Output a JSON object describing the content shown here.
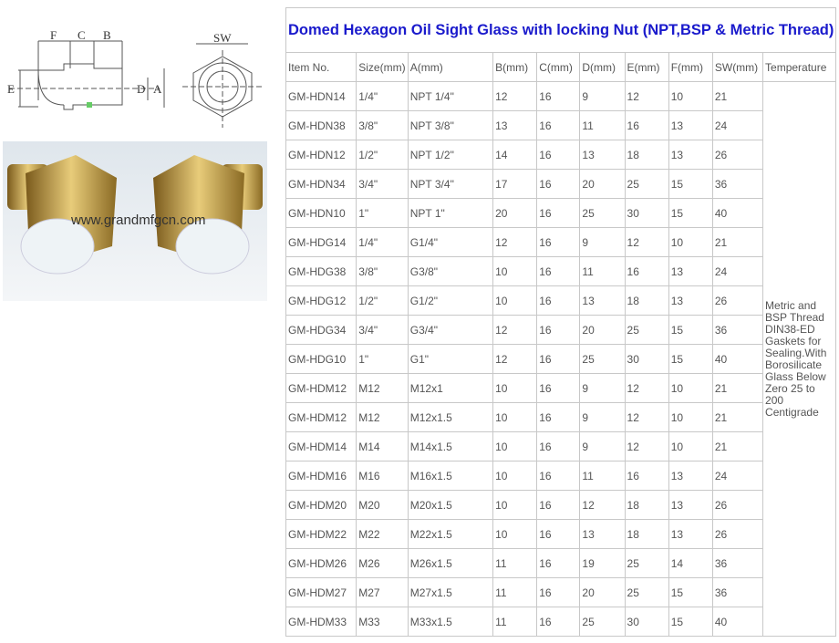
{
  "diagram": {
    "labels": [
      "F",
      "C",
      "B",
      "SW",
      "E",
      "D",
      "A"
    ]
  },
  "photo": {
    "watermark": "www.grandmfgcn.com"
  },
  "table": {
    "title": "Domed Hexagon Oil Sight Glass with locking Nut (NPT,BSP & Metric Thread)",
    "headers": [
      "Item No.",
      "Size(mm)",
      "A(mm)",
      "B(mm)",
      "C(mm)",
      "D(mm)",
      "E(mm)",
      "F(mm)",
      "SW(mm)",
      "Temperature"
    ],
    "temperature_note": "Metric and BSP Thread DIN38-ED Gaskets for Sealing.With Borosilicate Glass Below Zero 25 to 200 Centigrade",
    "rows": [
      [
        "GM-HDN14",
        "1/4\"",
        "NPT 1/4\"",
        "12",
        "16",
        "9",
        "12",
        "10",
        "21"
      ],
      [
        "GM-HDN38",
        "3/8\"",
        "NPT 3/8\"",
        "13",
        "16",
        "11",
        "16",
        "13",
        "24"
      ],
      [
        "GM-HDN12",
        "1/2\"",
        "NPT 1/2\"",
        "14",
        "16",
        "13",
        "18",
        "13",
        "26"
      ],
      [
        "GM-HDN34",
        "3/4\"",
        "NPT 3/4\"",
        "17",
        "16",
        "20",
        "25",
        "15",
        "36"
      ],
      [
        "GM-HDN10",
        "1\"",
        "NPT 1\"",
        "20",
        "16",
        "25",
        "30",
        "15",
        "40"
      ],
      [
        "GM-HDG14",
        "1/4\"",
        "G1/4\"",
        "12",
        "16",
        "9",
        "12",
        "10",
        "21"
      ],
      [
        "GM-HDG38",
        "3/8\"",
        "G3/8\"",
        "10",
        "16",
        "11",
        "16",
        "13",
        "24"
      ],
      [
        "GM-HDG12",
        "1/2\"",
        "G1/2\"",
        "10",
        "16",
        "13",
        "18",
        "13",
        "26"
      ],
      [
        "GM-HDG34",
        "3/4\"",
        "G3/4\"",
        "12",
        "16",
        "20",
        "25",
        "15",
        "36"
      ],
      [
        "GM-HDG10",
        "1\"",
        "G1\"",
        "12",
        "16",
        "25",
        "30",
        "15",
        "40"
      ],
      [
        "GM-HDM12",
        "M12",
        "M12x1",
        "10",
        "16",
        "9",
        "12",
        "10",
        "21"
      ],
      [
        "GM-HDM12",
        "M12",
        "M12x1.5",
        "10",
        "16",
        "9",
        "12",
        "10",
        "21"
      ],
      [
        "GM-HDM14",
        "M14",
        "M14x1.5",
        "10",
        "16",
        "9",
        "12",
        "10",
        "21"
      ],
      [
        "GM-HDM16",
        "M16",
        "M16x1.5",
        "10",
        "16",
        "11",
        "16",
        "13",
        "24"
      ],
      [
        "GM-HDM20",
        "M20",
        "M20x1.5",
        "10",
        "16",
        "12",
        "18",
        "13",
        "26"
      ],
      [
        "GM-HDM22",
        "M22",
        "M22x1.5",
        "10",
        "16",
        "13",
        "18",
        "13",
        "26"
      ],
      [
        "GM-HDM26",
        "M26",
        "M26x1.5",
        "11",
        "16",
        "19",
        "25",
        "14",
        "36"
      ],
      [
        "GM-HDM27",
        "M27",
        "M27x1.5",
        "11",
        "16",
        "20",
        "25",
        "15",
        "36"
      ],
      [
        "GM-HDM33",
        "M33",
        "M33x1.5",
        "11",
        "16",
        "25",
        "30",
        "15",
        "40"
      ]
    ]
  }
}
